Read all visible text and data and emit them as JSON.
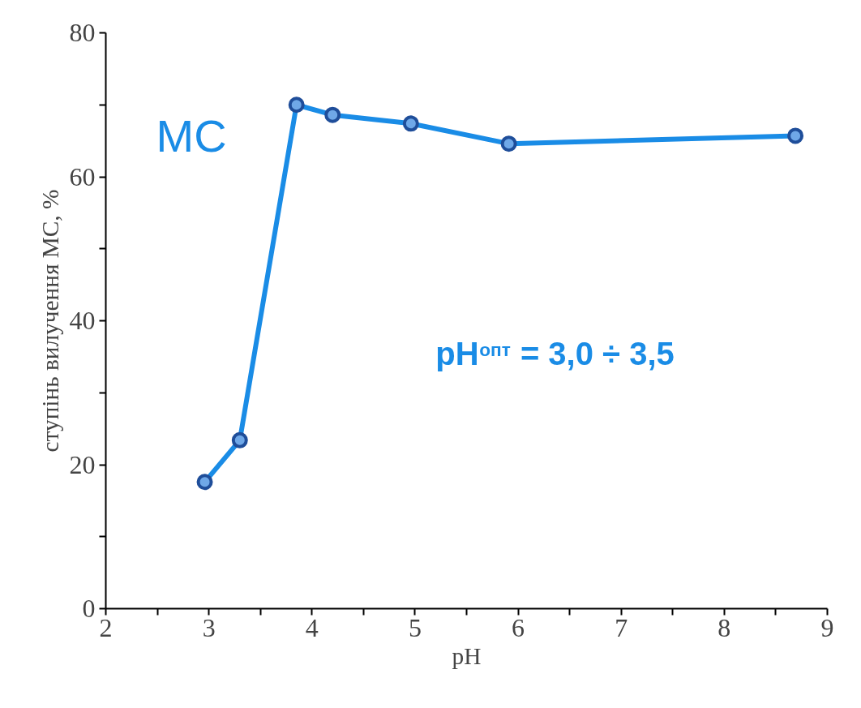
{
  "chart_data": {
    "type": "line",
    "xlabel": "pH",
    "ylabel": "ступінь вилучення МС, %",
    "x": [
      2.96,
      3.3,
      3.85,
      4.2,
      4.96,
      5.91,
      8.69
    ],
    "series": [
      {
        "name": "МС",
        "color": "#1a8ce6",
        "values": [
          17.6,
          23.4,
          70.0,
          68.6,
          67.4,
          64.6,
          65.7
        ]
      }
    ],
    "marker": "circle",
    "xlim": [
      2,
      9
    ],
    "ylim": [
      0,
      80
    ],
    "xticks": [
      2,
      {
        "value": 2.5,
        "label": null
      },
      3,
      {
        "value": 3.5,
        "label": null
      },
      4,
      {
        "value": 4.5,
        "label": null
      },
      5,
      {
        "value": 5.5,
        "label": null
      },
      6,
      {
        "value": 6.5,
        "label": null
      },
      7,
      {
        "value": 7.5,
        "label": null
      },
      8,
      {
        "value": 8.5,
        "label": null
      },
      9
    ],
    "yticks": [
      0,
      {
        "value": 10,
        "label": null
      },
      20,
      {
        "value": 30,
        "label": null
      },
      40,
      {
        "value": 50,
        "label": null
      },
      60,
      {
        "value": 70,
        "label": null
      },
      80
    ],
    "annotations": [
      "pH$^{опт}$ = 3,0 ÷ 3,5"
    ],
    "grid": false
  }
}
